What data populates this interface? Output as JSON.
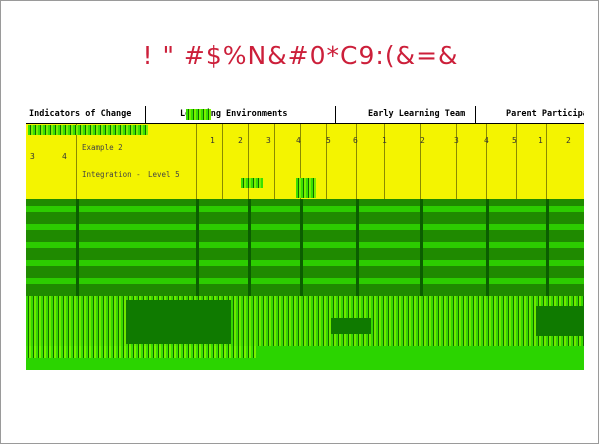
{
  "title": "! \" #$%N&#0*C9:(&=&",
  "table": {
    "headers": [
      "Indicators of Change",
      "Learning Environments",
      "Early Learning Team",
      "Parent Participati"
    ],
    "left_numbers": [
      "3",
      "4"
    ],
    "example_label": "Example 2",
    "integration_label": "Integration -",
    "level_label": "Level 5",
    "col_numbers": [
      "1",
      "2",
      "3",
      "4",
      "5",
      "6",
      "1",
      "2",
      "3",
      "4",
      "5",
      "1",
      "2"
    ]
  },
  "colors": {
    "title": "#cc1f3a",
    "header_bg": "#ffffff",
    "yellow": "#f4f400",
    "green": "#1f8a00"
  }
}
